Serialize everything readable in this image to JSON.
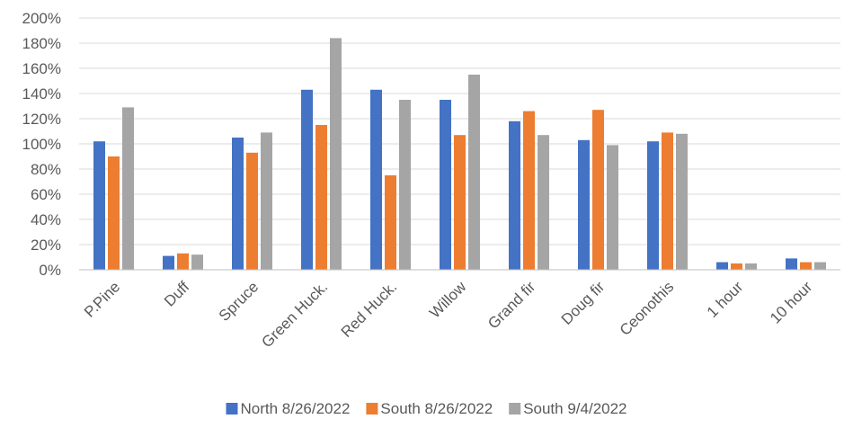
{
  "chart_data": {
    "type": "bar",
    "title": "",
    "xlabel": "",
    "ylabel": "",
    "ylim": [
      0,
      200
    ],
    "y_tick_step": 20,
    "y_tick_format": "percent",
    "grid": true,
    "legend_position": "bottom",
    "categories": [
      "P.Pine",
      "Duff",
      "Spruce",
      "Green Huck.",
      "Red Huck.",
      "Willow",
      "Grand fir",
      "Doug fir",
      "Ceonothis",
      "1 hour",
      "10 hour"
    ],
    "series": [
      {
        "name": "North 8/26/2022",
        "color": "#4472c4",
        "values": [
          102,
          11,
          105,
          143,
          143,
          135,
          118,
          103,
          102,
          6,
          9
        ]
      },
      {
        "name": "South 8/26/2022",
        "color": "#ed7d31",
        "values": [
          90,
          13,
          93,
          115,
          75,
          107,
          126,
          127,
          109,
          5,
          6
        ]
      },
      {
        "name": "South 9/4/2022",
        "color": "#a5a5a5",
        "values": [
          129,
          12,
          109,
          184,
          135,
          155,
          107,
          99,
          108,
          5,
          6
        ]
      }
    ]
  }
}
